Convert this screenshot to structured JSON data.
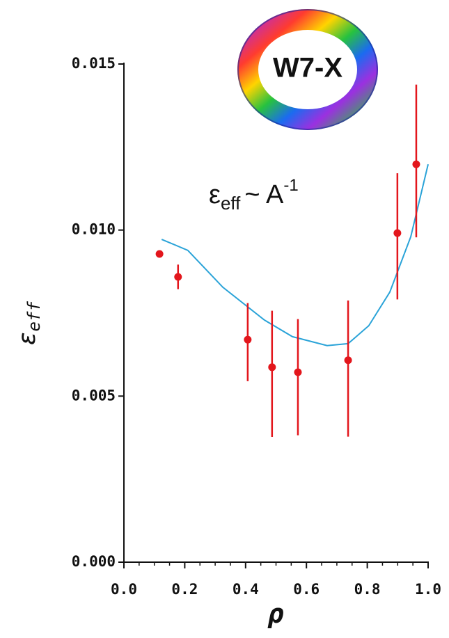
{
  "chart_data": {
    "type": "scatter",
    "xlabel": "ρ",
    "ylabel": {
      "base": "ε",
      "sub": "eff"
    },
    "annotation": {
      "base": "ε",
      "sub": "eff",
      "mid": "~ A",
      "sup": "-1"
    },
    "device_label": "W7-X",
    "xlim": [
      0,
      1.0
    ],
    "ylim": [
      0,
      0.015
    ],
    "xticks": [
      {
        "value": 0,
        "label": "0.0"
      },
      0.2,
      0.4,
      0.6,
      0.8,
      {
        "value": 1.0,
        "label": "1.0"
      }
    ],
    "xminorticks": [
      0.05,
      0.1,
      0.15,
      0.25,
      0.3,
      0.35,
      0.45,
      0.5,
      0.55,
      0.65,
      0.7,
      0.75,
      0.85,
      0.9,
      0.95
    ],
    "yticks": [
      {
        "value": 0,
        "label": "0.000"
      },
      {
        "value": 0.005,
        "label": "0.005"
      },
      {
        "value": 0.01,
        "label": "0.010"
      },
      {
        "value": 0.015,
        "label": "0.015"
      }
    ],
    "series": [
      {
        "type": "line",
        "color": "#2aa3d8",
        "x": [
          0.124,
          0.21,
          0.325,
          0.462,
          0.554,
          0.668,
          0.737,
          0.805,
          0.874,
          0.943,
          1.0
        ],
        "values": [
          0.00972,
          0.00939,
          0.00828,
          0.00729,
          0.00679,
          0.00652,
          0.00658,
          0.00712,
          0.00813,
          0.0098,
          0.01198
        ]
      },
      {
        "type": "scatter",
        "color": "#e3161c",
        "x": [
          0.117,
          0.178,
          0.407,
          0.487,
          0.572,
          0.737,
          0.899,
          0.961
        ],
        "values": [
          0.00928,
          0.00859,
          0.0067,
          0.00587,
          0.00572,
          0.00608,
          0.00991,
          0.01198
        ],
        "yerr_minus": [
          null,
          0.00037,
          0.00125,
          0.0021,
          0.0019,
          0.0023,
          0.002,
          0.0022
        ],
        "yerr_plus": [
          null,
          0.00037,
          0.0011,
          0.0017,
          0.0016,
          0.0018,
          0.0018,
          0.0024
        ]
      }
    ]
  }
}
